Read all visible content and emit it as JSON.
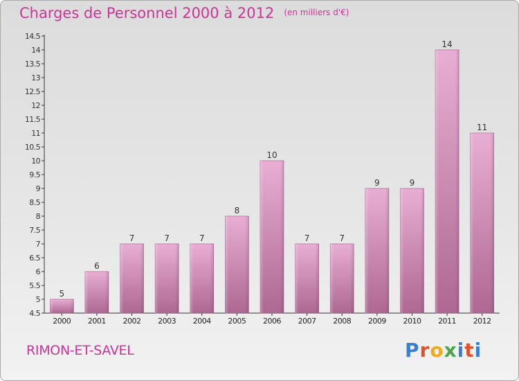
{
  "header": {
    "title": "Charges de Personnel 2000 à 2012",
    "subtitle": "(en milliers d'€)"
  },
  "footer": {
    "town": "RIMON-ET-SAVEL",
    "logo": "Proxiti"
  },
  "colors": {
    "accent": "#cc3399",
    "bar_light": "#e6a8d0",
    "bar_dark": "#b06a94"
  },
  "chart_data": {
    "type": "bar",
    "title": "Charges de Personnel 2000 à 2012",
    "subtitle": "(en milliers d'€)",
    "categories": [
      "2000",
      "2001",
      "2002",
      "2003",
      "2004",
      "2005",
      "2006",
      "2007",
      "2008",
      "2009",
      "2010",
      "2011",
      "2012"
    ],
    "values": [
      5,
      6,
      7,
      7,
      7,
      8,
      10,
      7,
      7,
      9,
      9,
      14,
      11
    ],
    "data_labels": [
      "5",
      "6",
      "7",
      "7",
      "7",
      "8",
      "10",
      "7",
      "7",
      "9",
      "9",
      "14",
      "11"
    ],
    "yticks": [
      "4.5",
      "5",
      "5.5",
      "6",
      "6.5",
      "7",
      "7.5",
      "8",
      "8.5",
      "9",
      "9.5",
      "10",
      "10.5",
      "11",
      "11.5",
      "12",
      "12.5",
      "13",
      "13.5",
      "14",
      "14.5"
    ],
    "ylim": [
      4.5,
      14.5
    ],
    "grid": false,
    "legend": "none"
  }
}
